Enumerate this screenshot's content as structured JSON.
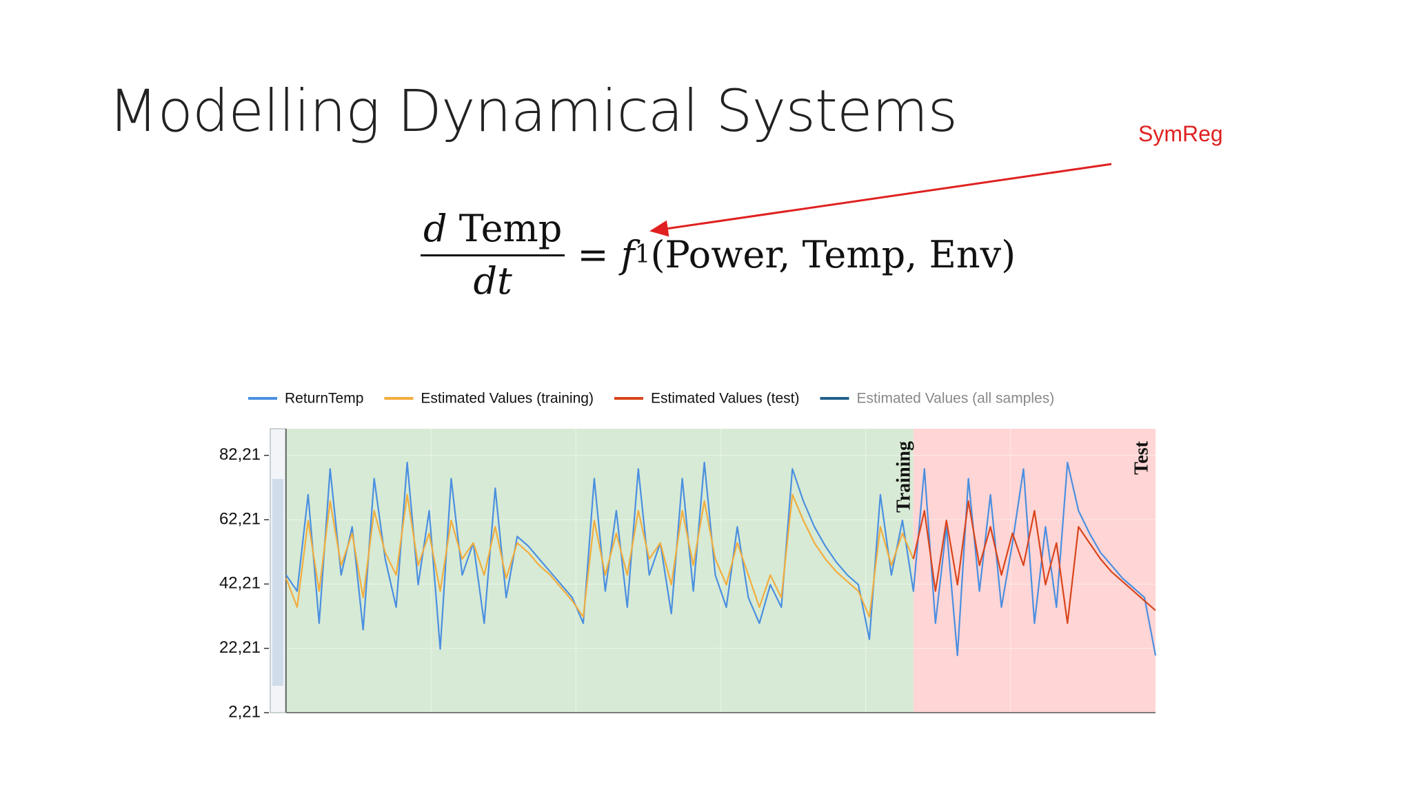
{
  "slide": {
    "title": "Modelling Dynamical Systems",
    "annotation": "SymReg",
    "equation": {
      "num_d": "d",
      "num_var": "Temp",
      "den": "dt",
      "equals": "=",
      "func": "f",
      "sub": "1",
      "args": "(Power, Temp, Env)"
    }
  },
  "chart_data": {
    "type": "line",
    "series": [
      {
        "name": "ReturnTemp",
        "color": "#4a8fe0",
        "visible": true,
        "values": [
          45,
          40,
          70,
          30,
          78,
          45,
          60,
          28,
          75,
          50,
          35,
          80,
          42,
          65,
          22,
          75,
          45,
          55,
          30,
          72,
          38,
          57,
          54,
          50,
          46,
          42,
          38,
          30,
          75,
          40,
          65,
          35,
          78,
          45,
          55,
          33,
          75,
          40,
          80,
          45,
          35,
          60,
          38,
          30,
          42,
          35,
          78,
          68,
          60,
          54,
          49,
          45,
          42,
          25,
          70,
          45,
          62,
          40,
          78,
          30,
          60,
          20,
          75,
          40,
          70,
          35,
          55,
          78,
          30,
          60,
          35,
          80,
          65,
          58,
          52,
          48,
          44,
          41,
          38,
          20
        ]
      },
      {
        "name": "Estimated Values (training)",
        "color": "#f2ad3d",
        "visible": true,
        "values": [
          44,
          35,
          62,
          40,
          68,
          48,
          58,
          38,
          65,
          52,
          45,
          70,
          48,
          58,
          40,
          62,
          50,
          55,
          45,
          60,
          44,
          55,
          52,
          48,
          45,
          41,
          37,
          32,
          62,
          45,
          58,
          45,
          65,
          50,
          55,
          42,
          65,
          48,
          68,
          50,
          42,
          55,
          45,
          35,
          45,
          38,
          70,
          62,
          55,
          50,
          46,
          43,
          40,
          32,
          60,
          48,
          58,
          50,
          null,
          null,
          null,
          null,
          null,
          null,
          null,
          null,
          null,
          null,
          null,
          null,
          null,
          null,
          null,
          null,
          null,
          null,
          null,
          null,
          null,
          null
        ]
      },
      {
        "name": "Estimated Values (test)",
        "color": "#d9441a",
        "visible": true,
        "values": [
          null,
          null,
          null,
          null,
          null,
          null,
          null,
          null,
          null,
          null,
          null,
          null,
          null,
          null,
          null,
          null,
          null,
          null,
          null,
          null,
          null,
          null,
          null,
          null,
          null,
          null,
          null,
          null,
          null,
          null,
          null,
          null,
          null,
          null,
          null,
          null,
          null,
          null,
          null,
          null,
          null,
          null,
          null,
          null,
          null,
          null,
          null,
          null,
          null,
          null,
          null,
          null,
          null,
          null,
          null,
          null,
          null,
          50,
          65,
          40,
          62,
          42,
          68,
          48,
          60,
          45,
          58,
          48,
          65,
          42,
          55,
          30,
          60,
          55,
          50,
          46,
          43,
          40,
          37,
          34
        ]
      },
      {
        "name": "Estimated Values (all samples)",
        "color": "#1f5f8b",
        "visible": false,
        "values": [
          null,
          null,
          null,
          null,
          null,
          null,
          null,
          null,
          null,
          null,
          null,
          null,
          null,
          null,
          null,
          null,
          null,
          null,
          null,
          null,
          null,
          null,
          null,
          null,
          null,
          null,
          null,
          null,
          null,
          null,
          null,
          null,
          null,
          null,
          null,
          null,
          null,
          null,
          null,
          null,
          null,
          null,
          null,
          null,
          null,
          null,
          null,
          null,
          null,
          null,
          null,
          null,
          null,
          null,
          null,
          null,
          null,
          null,
          null,
          null,
          null,
          null,
          null,
          null,
          null,
          null,
          null,
          null,
          null,
          null,
          null,
          null,
          null,
          null,
          null,
          null,
          null,
          null,
          null,
          null
        ]
      }
    ],
    "regions": [
      {
        "label": "Training",
        "start": 0,
        "end": 57,
        "color": "#d7ead5"
      },
      {
        "label": "Test",
        "start": 57,
        "end": 79,
        "color": "#ffd5d5"
      }
    ],
    "ylim": [
      2.21,
      90.5
    ],
    "yticks": [
      {
        "value": 2.21,
        "label": "2,21"
      },
      {
        "value": 22.21,
        "label": "22,21"
      },
      {
        "value": 42.21,
        "label": "42,21"
      },
      {
        "value": 62.21,
        "label": "62,21"
      },
      {
        "value": 82.21,
        "label": "82,21"
      }
    ]
  }
}
